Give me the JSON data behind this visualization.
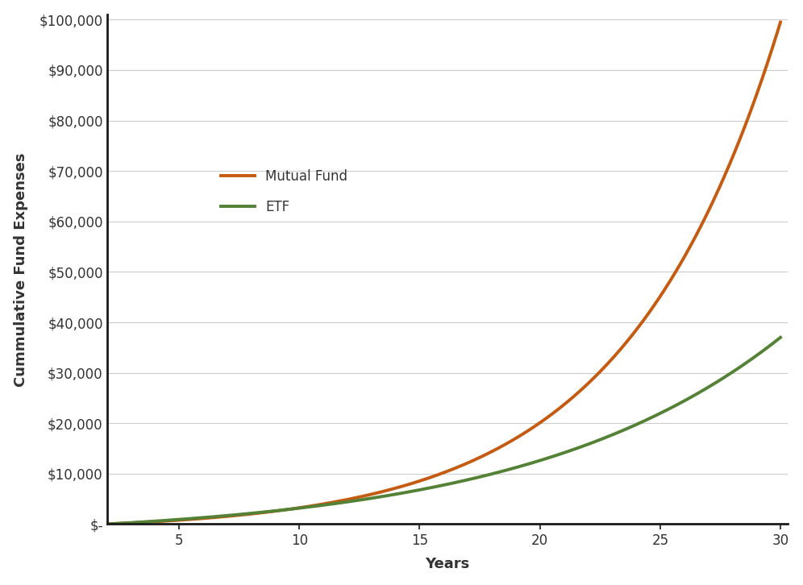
{
  "title": "",
  "xlabel": "Years",
  "ylabel": "Cummulative Fund Expenses",
  "background_color": "#ffffff",
  "plot_bg_color": "#ffffff",
  "mutual_fund_color": "#C55A11",
  "etf_color": "#538135",
  "line_width": 2.8,
  "legend_labels": [
    "Mutual Fund",
    "ETF"
  ],
  "ylim": [
    0,
    100000
  ],
  "xlim": [
    2,
    30
  ],
  "ytick_values": [
    0,
    10000,
    20000,
    30000,
    40000,
    50000,
    60000,
    70000,
    80000,
    90000,
    100000
  ],
  "ytick_labels": [
    "$-",
    "$10,000",
    "$20,000",
    "$30,000",
    "$40,000",
    "$50,000",
    "$60,000",
    "$70,000",
    "$80,000",
    "$90,000",
    "$100,000"
  ],
  "xtick_values": [
    5,
    10,
    15,
    20,
    25,
    30
  ],
  "mf_scale": 99500,
  "etf_scale": 37000,
  "mf_growth": 0.155,
  "etf_growth": 0.095,
  "grid_color": "#cccccc",
  "spine_color": "#1a1a1a",
  "tick_color": "#333333",
  "label_fontsize": 13,
  "tick_fontsize": 12
}
